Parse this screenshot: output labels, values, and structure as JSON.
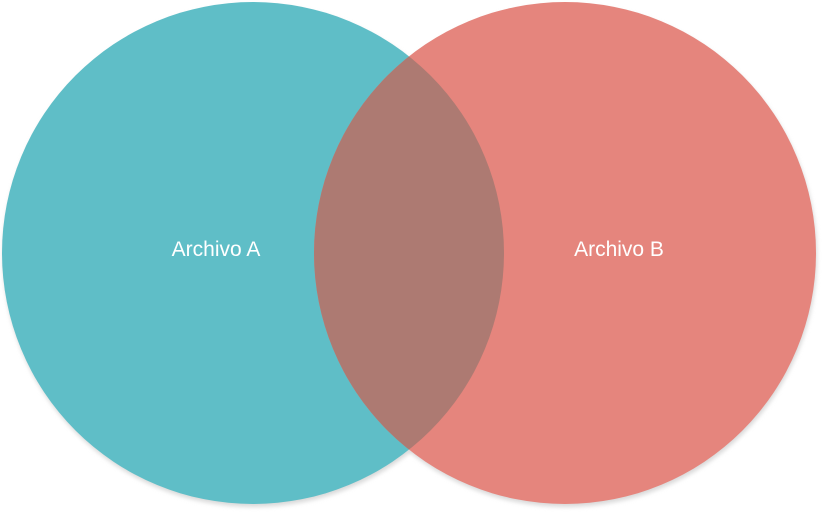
{
  "diagram": {
    "type": "venn",
    "sets": [
      {
        "label": "Archivo A",
        "color": "#5fbec7"
      },
      {
        "label": "Archivo B",
        "color": "#e5857d"
      }
    ],
    "intersection_color": "#ad7a72",
    "shadow_color": "#d9d9d9",
    "background": "#ffffff"
  }
}
